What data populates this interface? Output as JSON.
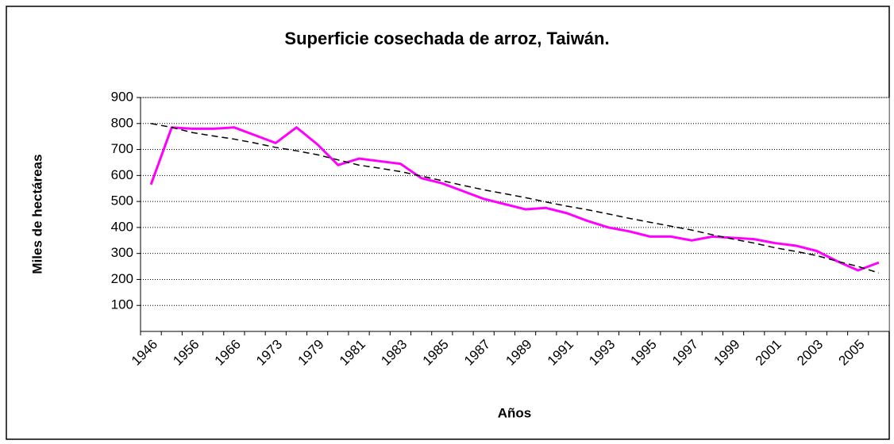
{
  "chart_data": {
    "type": "line",
    "title": "Superficie cosechada de arroz, Taiwán.",
    "x_label": "Años",
    "y_label": "Miles de hectáreas",
    "categories": [
      "1946",
      null,
      "1956",
      null,
      "1966",
      null,
      "1973",
      null,
      "1979",
      null,
      "1981",
      null,
      "1983",
      null,
      "1985",
      null,
      "1987",
      null,
      "1989",
      null,
      "1991",
      null,
      "1993",
      null,
      "1995",
      null,
      "1997",
      null,
      "1999",
      null,
      "2001",
      null,
      "2003",
      null,
      "2005",
      null
    ],
    "series": [
      {
        "name": null,
        "color": "#ff00ff",
        "dash": false,
        "values": [
          565,
          785,
          780,
          780,
          785,
          755,
          725,
          785,
          720,
          640,
          665,
          655,
          645,
          590,
          570,
          540,
          510,
          490,
          470,
          475,
          455,
          425,
          400,
          385,
          365,
          365,
          350,
          365,
          360,
          355,
          340,
          330,
          310,
          270,
          235,
          265
        ]
      },
      {
        "name": null,
        "color": "#000000",
        "dash": true,
        "values": [
          800,
          785,
          765,
          752,
          740,
          725,
          708,
          695,
          680,
          660,
          640,
          628,
          615,
          598,
          580,
          562,
          545,
          530,
          515,
          498,
          482,
          468,
          452,
          435,
          420,
          405,
          390,
          372,
          355,
          340,
          322,
          308,
          292,
          270,
          250,
          225
        ]
      }
    ],
    "ylim": [
      0,
      900
    ],
    "yticks": [
      100,
      200,
      300,
      400,
      500,
      600,
      700,
      800,
      900
    ],
    "grid": true
  }
}
